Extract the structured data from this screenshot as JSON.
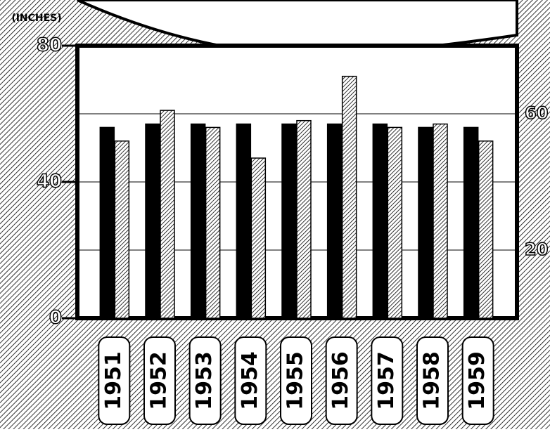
{
  "chart_data": {
    "type": "bar",
    "y_label": "(INCHES)",
    "categories": [
      "1951",
      "1952",
      "1953",
      "1954",
      "1955",
      "1956",
      "1957",
      "1958",
      "1959"
    ],
    "series": [
      {
        "color": "#000000",
        "hatched": false,
        "values": [
          56,
          57,
          57,
          57,
          57,
          57,
          57,
          56,
          56
        ]
      },
      {
        "color": "#000000",
        "hatched": true,
        "values": [
          52,
          61,
          56,
          47,
          58,
          71,
          56,
          57,
          52
        ]
      }
    ],
    "ylim": [
      0,
      80
    ],
    "yticks": [
      0,
      40,
      80
    ],
    "y2lim": [
      0,
      80
    ],
    "y2ticks": [
      20,
      60
    ],
    "grid": true
  }
}
